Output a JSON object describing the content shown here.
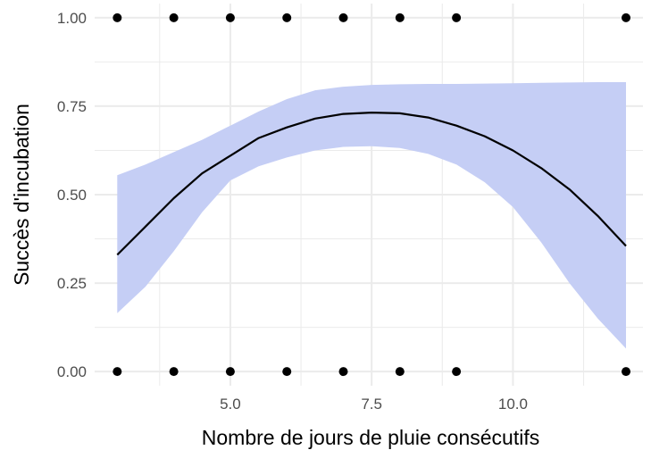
{
  "chart_data": {
    "type": "scatter",
    "title": "",
    "xlabel": "Nombre de jours de pluie consécutifs",
    "ylabel": "Succès d'incubation",
    "xlim": [
      2.6,
      12.3
    ],
    "ylim": [
      -0.04,
      1.04
    ],
    "x_ticks": [
      5.0,
      7.5,
      10.0
    ],
    "x_tick_labels": [
      "5.0",
      "7.5",
      "10.0"
    ],
    "y_ticks": [
      0.0,
      0.25,
      0.5,
      0.75,
      1.0
    ],
    "y_tick_labels": [
      "0.00",
      "0.25",
      "0.50",
      "0.75",
      "1.00"
    ],
    "grid": true,
    "legend": "none",
    "colors": {
      "ribbon": "#c5cef5",
      "line": "#000000",
      "points": "#000000",
      "grid": "#ebebeb"
    },
    "points": [
      {
        "x": 3,
        "y": 1
      },
      {
        "x": 4,
        "y": 1
      },
      {
        "x": 5,
        "y": 1
      },
      {
        "x": 6,
        "y": 1
      },
      {
        "x": 7,
        "y": 1
      },
      {
        "x": 8,
        "y": 1
      },
      {
        "x": 9,
        "y": 1
      },
      {
        "x": 12,
        "y": 1
      },
      {
        "x": 3,
        "y": 0
      },
      {
        "x": 4,
        "y": 0
      },
      {
        "x": 5,
        "y": 0
      },
      {
        "x": 6,
        "y": 0
      },
      {
        "x": 7,
        "y": 0
      },
      {
        "x": 8,
        "y": 0
      },
      {
        "x": 9,
        "y": 0
      },
      {
        "x": 12,
        "y": 0
      }
    ],
    "fit": {
      "x": [
        3,
        3.5,
        4,
        4.5,
        5,
        5.5,
        6,
        6.5,
        7,
        7.5,
        8,
        8.5,
        9,
        9.5,
        10,
        10.5,
        11,
        11.5,
        12
      ],
      "y": [
        0.33,
        0.41,
        0.49,
        0.56,
        0.61,
        0.66,
        0.69,
        0.715,
        0.728,
        0.732,
        0.73,
        0.718,
        0.695,
        0.665,
        0.625,
        0.575,
        0.515,
        0.44,
        0.355
      ],
      "lower": [
        0.165,
        0.24,
        0.34,
        0.45,
        0.54,
        0.58,
        0.605,
        0.625,
        0.635,
        0.637,
        0.632,
        0.615,
        0.585,
        0.535,
        0.465,
        0.365,
        0.25,
        0.15,
        0.065
      ],
      "upper": [
        0.555,
        0.585,
        0.62,
        0.655,
        0.695,
        0.735,
        0.77,
        0.795,
        0.805,
        0.81,
        0.812,
        0.813,
        0.813,
        0.814,
        0.815,
        0.816,
        0.817,
        0.818,
        0.818
      ]
    }
  }
}
